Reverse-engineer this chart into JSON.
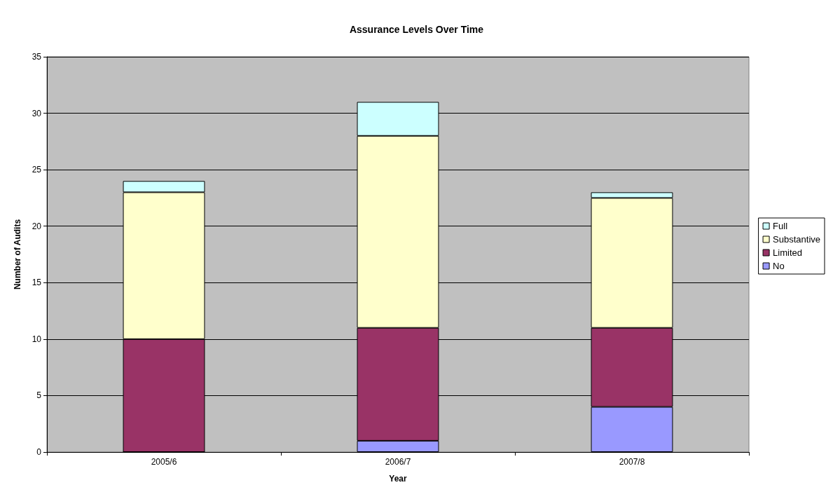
{
  "chart_data": {
    "type": "bar",
    "title": "Assurance Levels Over Time",
    "xlabel": "Year",
    "ylabel": "Number of Audits",
    "categories": [
      "2005/6",
      "2006/7",
      "2007/8"
    ],
    "stacked": true,
    "ylim": [
      0,
      35
    ],
    "yticks": [
      0,
      5,
      10,
      15,
      20,
      25,
      30,
      35
    ],
    "grid": "y",
    "legend": "right",
    "series": [
      {
        "name": "No",
        "color": "#9999ff",
        "values": [
          0,
          1,
          4
        ]
      },
      {
        "name": "Limited",
        "color": "#993366",
        "values": [
          10,
          10,
          7
        ]
      },
      {
        "name": "Substantive",
        "color": "#ffffcc",
        "values": [
          13,
          17,
          11.5
        ]
      },
      {
        "name": "Full",
        "color": "#ccffff",
        "values": [
          1,
          3,
          0.5
        ]
      }
    ]
  }
}
